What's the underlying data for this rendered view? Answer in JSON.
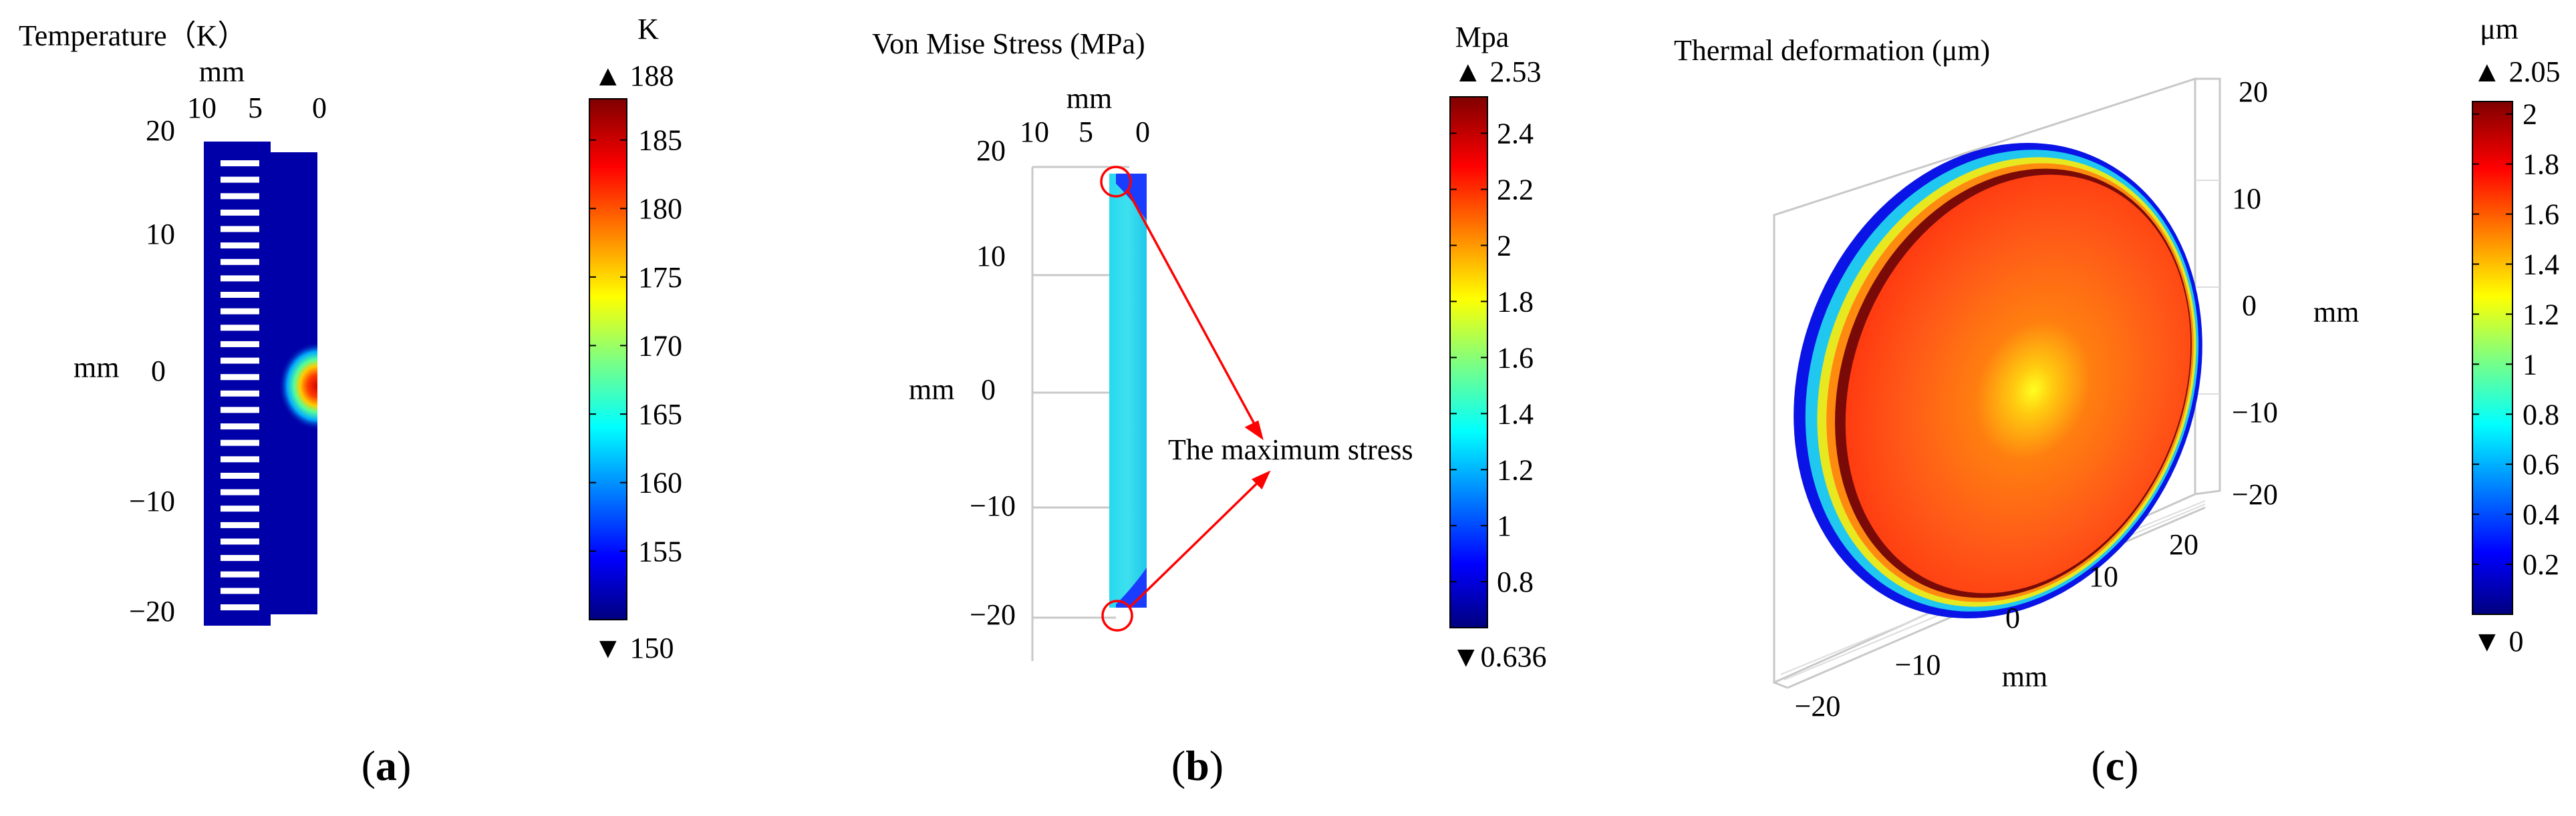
{
  "chart_data": [
    {
      "type": "heatmap",
      "panel": "(a)",
      "caption": {
        "open": "(",
        "letter": "a",
        "close": ")"
      },
      "title": "Temperature（K）",
      "xlabel": "mm",
      "ylabel": "mm",
      "xticks": [
        "10",
        "5",
        "0"
      ],
      "yticks": [
        "20",
        "10",
        "0",
        "−10",
        "−20"
      ],
      "xlim": [
        10,
        0
      ],
      "ylim": [
        -20,
        20
      ],
      "colorbar": {
        "unit": "K",
        "max_label": "▲ 188",
        "min_label": "▼ 150",
        "min": 150,
        "max": 188,
        "ticks": [
          185,
          180,
          175,
          170,
          165,
          160,
          155
        ]
      },
      "hotspot": {
        "x": 0,
        "y": 0,
        "value": 188
      }
    },
    {
      "type": "heatmap",
      "panel": "(b)",
      "caption": {
        "open": "(",
        "letter": "b",
        "close": ")"
      },
      "title": "Von Mise Stress (MPa)",
      "xlabel": "mm",
      "ylabel": "mm",
      "xticks": [
        "10",
        "5",
        "0"
      ],
      "yticks": [
        "20",
        "10",
        "0",
        "−10",
        "−20"
      ],
      "xlim": [
        10,
        0
      ],
      "ylim": [
        -20,
        20
      ],
      "annotation": "The maximum stress",
      "max_stress_locations": [
        {
          "x": 2,
          "y": 18
        },
        {
          "x": 2,
          "y": -20
        }
      ],
      "colorbar": {
        "unit": "Mpa",
        "max_label": "▲ 2.53",
        "min_label": "▼0.636",
        "min": 0.636,
        "max": 2.53,
        "ticks": [
          2.4,
          2.2,
          2,
          1.8,
          1.6,
          1.4,
          1.2,
          1,
          0.8
        ]
      }
    },
    {
      "type": "heatmap",
      "panel": "(c)",
      "caption": {
        "open": "(",
        "letter": "c",
        "close": ")"
      },
      "title": "Thermal deformation (μm)",
      "xlabel": "mm",
      "ylabel": "mm",
      "xticks": [
        "−20",
        "−10",
        "0",
        "10",
        "20"
      ],
      "yticks": [
        "20",
        "10",
        "0",
        "−10",
        "−20"
      ],
      "xlim": [
        -20,
        20
      ],
      "ylim": [
        -20,
        20
      ],
      "colorbar": {
        "unit": "μm",
        "max_label": "▲ 2.05",
        "min_label": "▼ 0",
        "min": 0,
        "max": 2.05,
        "ticks": [
          2,
          1.8,
          1.6,
          1.4,
          1.2,
          1,
          0.8,
          0.6,
          0.4,
          0.2
        ]
      }
    }
  ],
  "colors": {
    "field_background": "#0000a8",
    "arrow": "#ff0000",
    "circle": "#ff0000",
    "frame": "#bdbdbd",
    "colormap": [
      "#00007f",
      "#0000ff",
      "#00ffff",
      "#ffff00",
      "#ff0000",
      "#7f0000"
    ]
  }
}
